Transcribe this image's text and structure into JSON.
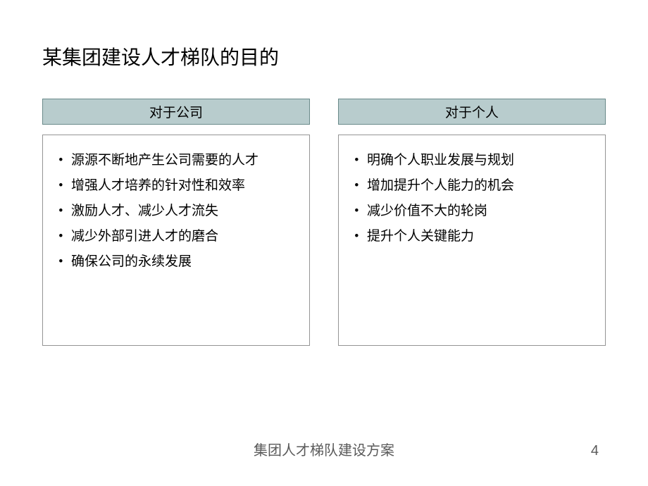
{
  "title": "某集团建设人才梯队的目的",
  "columns": [
    {
      "header": "对于公司",
      "header_bg": "#b8cccd",
      "items": [
        "源源不断地产生公司需要的人才",
        "增强人才培养的针对性和效率",
        "激励人才、减少人才流失",
        "减少外部引进人才的磨合",
        "确保公司的永续发展"
      ]
    },
    {
      "header": "对于个人",
      "header_bg": "#b8cccd",
      "items": [
        "明确个人职业发展与规划",
        "增加提升个人能力的机会",
        "减少价值不大的轮岗",
        "提升个人关键能力"
      ]
    }
  ],
  "footer": "集团人才梯队建设方案",
  "page_number": "4",
  "styles": {
    "title_fontsize": 28,
    "header_fontsize": 19,
    "item_fontsize": 19,
    "footer_fontsize": 20,
    "title_color": "#000000",
    "text_color": "#000000",
    "footer_color": "#5a5a5a",
    "background": "#ffffff",
    "header_border": "#6a8a8a",
    "body_border": "#949494"
  }
}
